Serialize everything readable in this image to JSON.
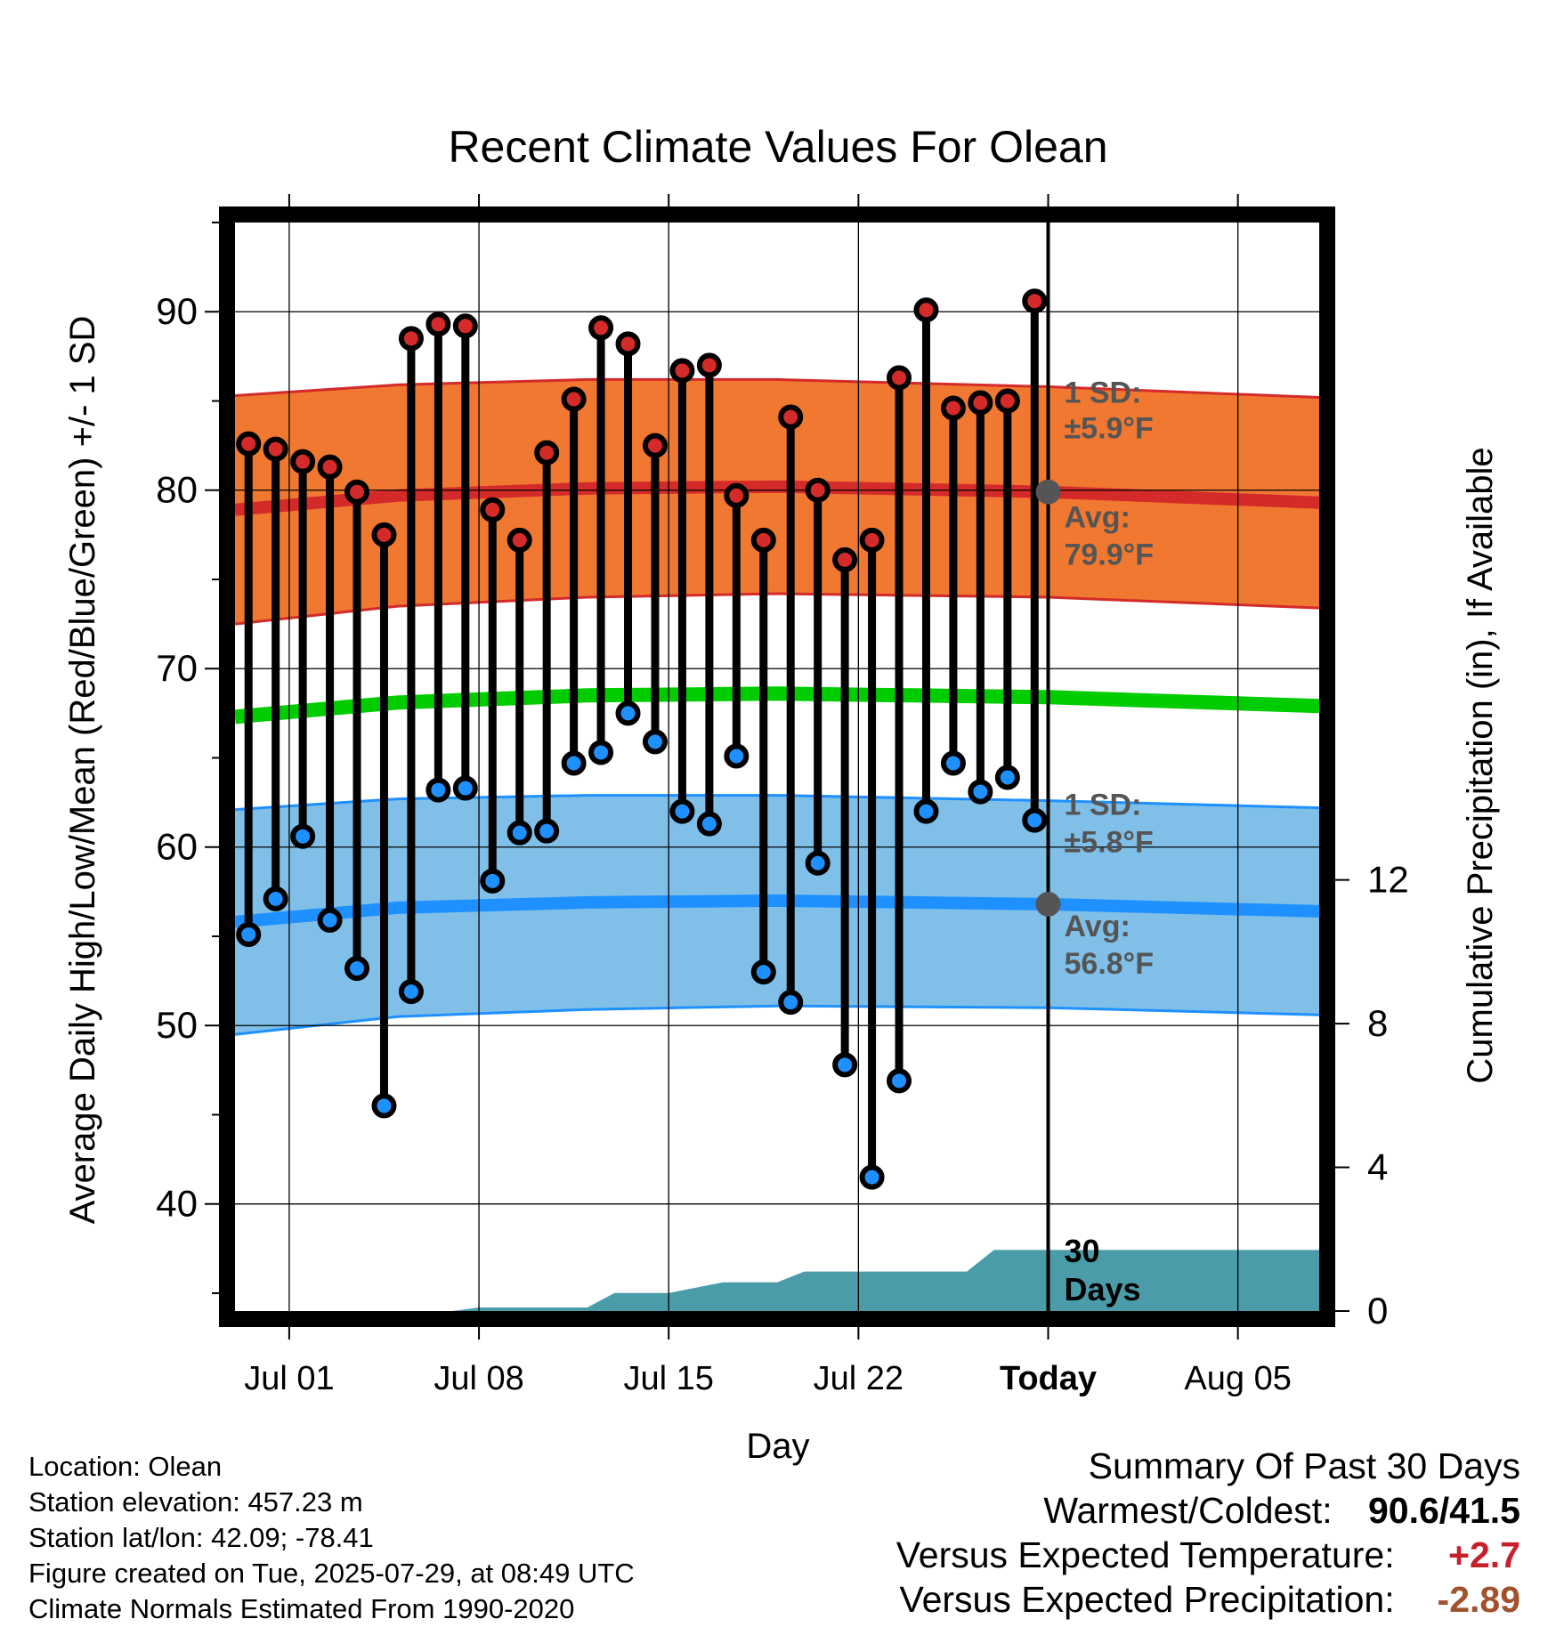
{
  "title": "Recent Climate Values For Olean",
  "footer": {
    "location": "Location: Olean",
    "elevation": "Station elevation: 457.23 m",
    "latlon": "Station lat/lon: 42.09; -78.41",
    "created": "Figure created on Tue, 2025-07-29, at 08:49 UTC",
    "normals": "Climate Normals Estimated From 1990-2020"
  },
  "summary": {
    "title": "Summary Of Past 30 Days",
    "warmest_coldest_label": "Warmest/Coldest:",
    "warmest_coldest_value": "90.6/41.5",
    "temp_label": "Versus Expected Temperature:",
    "temp_value": "+2.7",
    "precip_label": "Versus Expected Precipitation:",
    "precip_value": "-2.89",
    "temp_color": "#c8202a",
    "precip_color": "#a0522d"
  },
  "chart_data": {
    "type": "line",
    "xlabel": "Day",
    "ylabel": "Average Daily High/Low/Mean (Red/Blue/Green) +/- 1 SD",
    "y2label": "Cumulative Precipitation (in), If Available",
    "ylim": [
      34,
      95
    ],
    "y2lim": [
      0,
      30.3
    ],
    "xlim": [
      "2025-06-29",
      "2025-08-08"
    ],
    "x_ticks": [
      {
        "date": "2025-07-01",
        "label": "Jul 01"
      },
      {
        "date": "2025-07-08",
        "label": "Jul 08"
      },
      {
        "date": "2025-07-15",
        "label": "Jul 15"
      },
      {
        "date": "2025-07-22",
        "label": "Jul 22"
      },
      {
        "date": "2025-07-29",
        "label": "Today"
      },
      {
        "date": "2025-08-05",
        "label": "Aug 05"
      }
    ],
    "y_ticks": [
      40,
      50,
      60,
      70,
      80,
      90
    ],
    "y2_ticks": [
      0,
      4,
      8,
      12
    ],
    "grid": true,
    "today": "2025-07-29",
    "days": [
      "2025-06-29",
      "2025-06-30",
      "2025-07-01",
      "2025-07-02",
      "2025-07-03",
      "2025-07-04",
      "2025-07-05",
      "2025-07-06",
      "2025-07-07",
      "2025-07-08",
      "2025-07-09",
      "2025-07-10",
      "2025-07-11",
      "2025-07-12",
      "2025-07-13",
      "2025-07-14",
      "2025-07-15",
      "2025-07-16",
      "2025-07-17",
      "2025-07-18",
      "2025-07-19",
      "2025-07-20",
      "2025-07-21",
      "2025-07-22",
      "2025-07-23",
      "2025-07-24",
      "2025-07-25",
      "2025-07-26",
      "2025-07-27",
      "2025-07-28"
    ],
    "daily_high": [
      82.6,
      82.3,
      81.6,
      81.3,
      79.9,
      77.5,
      88.5,
      89.3,
      89.2,
      78.9,
      77.2,
      82.1,
      85.1,
      89.1,
      88.2,
      82.5,
      86.7,
      87.0,
      79.7,
      77.2,
      84.1,
      80.0,
      76.1,
      77.2,
      86.3,
      90.1,
      84.6,
      84.9,
      85.0,
      90.6
    ],
    "daily_low": [
      55.1,
      57.1,
      60.6,
      55.9,
      53.2,
      45.5,
      51.9,
      63.2,
      63.3,
      58.1,
      60.8,
      60.9,
      64.7,
      65.3,
      67.5,
      65.9,
      62.0,
      61.3,
      65.1,
      53.0,
      51.3,
      59.1,
      47.8,
      41.5,
      46.9,
      62.0,
      64.7,
      63.1,
      63.9,
      61.5
    ],
    "normals": [
      {
        "date": "2025-06-29",
        "high_avg": 78.9,
        "high_sd": 6.4,
        "low_avg": 55.8,
        "low_sd": 6.3,
        "mean": 67.3
      },
      {
        "date": "2025-07-05",
        "high_avg": 79.7,
        "high_sd": 6.2,
        "low_avg": 56.6,
        "low_sd": 6.1,
        "mean": 68.1
      },
      {
        "date": "2025-07-12",
        "high_avg": 80.1,
        "high_sd": 6.1,
        "low_avg": 56.9,
        "low_sd": 6.0,
        "mean": 68.5
      },
      {
        "date": "2025-07-19",
        "high_avg": 80.2,
        "high_sd": 6.0,
        "low_avg": 57.0,
        "low_sd": 5.9,
        "mean": 68.6
      },
      {
        "date": "2025-07-29",
        "high_avg": 79.9,
        "high_sd": 5.9,
        "low_avg": 56.8,
        "low_sd": 5.8,
        "mean": 68.4
      },
      {
        "date": "2025-08-08",
        "high_avg": 79.3,
        "high_sd": 5.9,
        "low_avg": 56.4,
        "low_sd": 5.8,
        "mean": 67.9
      }
    ],
    "precip_cumulative": [
      {
        "date": "2025-06-29",
        "value": 0.0
      },
      {
        "date": "2025-07-07",
        "value": 0.0
      },
      {
        "date": "2025-07-08",
        "value": 0.1
      },
      {
        "date": "2025-07-12",
        "value": 0.1
      },
      {
        "date": "2025-07-13",
        "value": 0.5
      },
      {
        "date": "2025-07-15",
        "value": 0.5
      },
      {
        "date": "2025-07-17",
        "value": 0.8
      },
      {
        "date": "2025-07-19",
        "value": 0.8
      },
      {
        "date": "2025-07-20",
        "value": 1.1
      },
      {
        "date": "2025-07-26",
        "value": 1.1
      },
      {
        "date": "2025-07-27",
        "value": 1.7
      },
      {
        "date": "2025-08-08",
        "value": 1.7
      }
    ],
    "annotations": {
      "high_sd_line1": "1 SD:",
      "high_sd_line2": "±5.9°F",
      "high_avg_line1": "Avg:",
      "high_avg_line2": "79.9°F",
      "low_sd_line1": "1 SD:",
      "low_sd_line2": "±5.8°F",
      "low_avg_line1": "Avg:",
      "low_avg_line2": "56.8°F",
      "days_line1": "30",
      "days_line2": "Days"
    },
    "colors": {
      "high_band": "#f07830",
      "high_band_edge": "#d42a2a",
      "high_avg": "#d42a2a",
      "low_band": "#80c0e8",
      "low_band_edge": "#1e90ff",
      "low_avg": "#1e90ff",
      "mean": "#00cc00",
      "precip": "#4a9ca8",
      "high_marker": "#d42a2a",
      "low_marker": "#1e90ff",
      "annot": "#555555"
    }
  }
}
